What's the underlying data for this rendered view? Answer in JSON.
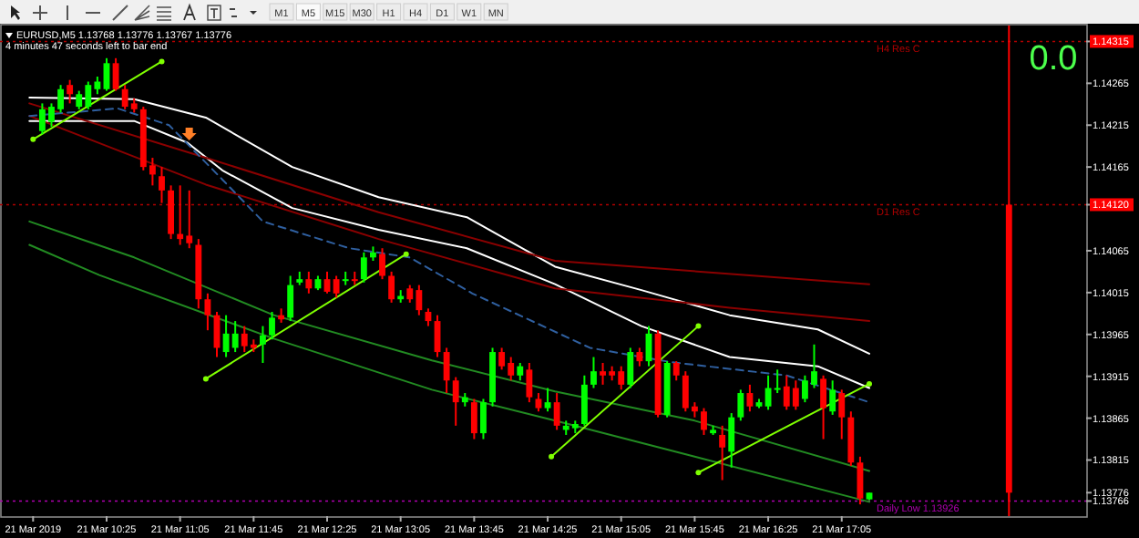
{
  "chart_data": {
    "type": "candlestick",
    "title": "EURUSD,M5  1.13768 1.13776 1.13767 1.13776",
    "subtitle": "4 minutes 47 seconds left to bar end",
    "annotations": [
      "M1",
      "M5",
      "M15",
      "M30",
      "H1",
      "H4",
      "D1",
      "W1",
      "MN",
      "0.0"
    ],
    "x": [
      "2019-03-21T09:50",
      "2019-03-21T09:55",
      "2019-03-21T10:00",
      "2019-03-21T10:05",
      "2019-03-21T10:10",
      "2019-03-21T10:15",
      "2019-03-21T10:20",
      "2019-03-21T10:25",
      "2019-03-21T10:30",
      "2019-03-21T10:35",
      "2019-03-21T10:40",
      "2019-03-21T10:45",
      "2019-03-21T10:50",
      "2019-03-21T10:55",
      "2019-03-21T11:00",
      "2019-03-21T11:05",
      "2019-03-21T11:10",
      "2019-03-21T11:15",
      "2019-03-21T11:20",
      "2019-03-21T11:25",
      "2019-03-21T11:30",
      "2019-03-21T11:35",
      "2019-03-21T11:40",
      "2019-03-21T11:45",
      "2019-03-21T11:50",
      "2019-03-21T11:55",
      "2019-03-21T12:00",
      "2019-03-21T12:05",
      "2019-03-21T12:10",
      "2019-03-21T12:15",
      "2019-03-21T12:20",
      "2019-03-21T12:25",
      "2019-03-21T12:30",
      "2019-03-21T12:35",
      "2019-03-21T12:40",
      "2019-03-21T12:45",
      "2019-03-21T12:50",
      "2019-03-21T12:55",
      "2019-03-21T13:00",
      "2019-03-21T13:05",
      "2019-03-21T13:10",
      "2019-03-21T13:15",
      "2019-03-21T13:20",
      "2019-03-21T13:25",
      "2019-03-21T13:30",
      "2019-03-21T13:35",
      "2019-03-21T13:40",
      "2019-03-21T13:45",
      "2019-03-21T13:50",
      "2019-03-21T13:55",
      "2019-03-21T14:00",
      "2019-03-21T14:05",
      "2019-03-21T14:10",
      "2019-03-21T14:15",
      "2019-03-21T14:20",
      "2019-03-21T14:25",
      "2019-03-21T14:30",
      "2019-03-21T14:35",
      "2019-03-21T14:40",
      "2019-03-21T14:45",
      "2019-03-21T14:50",
      "2019-03-21T14:55",
      "2019-03-21T15:00",
      "2019-03-21T15:05",
      "2019-03-21T15:10",
      "2019-03-21T15:15",
      "2019-03-21T15:20",
      "2019-03-21T15:25",
      "2019-03-21T15:30",
      "2019-03-21T15:35",
      "2019-03-21T15:40",
      "2019-03-21T15:45",
      "2019-03-21T15:50",
      "2019-03-21T15:55",
      "2019-03-21T16:00",
      "2019-03-21T16:05",
      "2019-03-21T16:10",
      "2019-03-21T16:15",
      "2019-03-21T16:20",
      "2019-03-21T16:25",
      "2019-03-21T16:30",
      "2019-03-21T16:35",
      "2019-03-21T16:40",
      "2019-03-21T16:45",
      "2019-03-21T16:50",
      "2019-03-21T16:55",
      "2019-03-21T17:00",
      "2019-03-21T17:05",
      "2019-03-21T17:10",
      "2019-03-21T17:15",
      "2019-03-21T17:20",
      "2019-03-21T18:36"
    ],
    "ohlc": [
      [
        1.14208,
        1.14241,
        1.14204,
        1.14234
      ],
      [
        1.14219,
        1.14241,
        1.14213,
        1.14237
      ],
      [
        1.14234,
        1.14263,
        1.1423,
        1.14258
      ],
      [
        1.14263,
        1.14269,
        1.14241,
        1.14252
      ],
      [
        1.14237,
        1.14256,
        1.14234,
        1.14252
      ],
      [
        1.14237,
        1.14267,
        1.14234,
        1.14263
      ],
      [
        1.14258,
        1.14273,
        1.14252,
        1.14267
      ],
      [
        1.14258,
        1.14295,
        1.14256,
        1.14289
      ],
      [
        1.14289,
        1.14295,
        1.14256,
        1.14258
      ],
      [
        1.14258,
        1.14263,
        1.14234,
        1.14237
      ],
      [
        1.14241,
        1.14247,
        1.1423,
        1.14234
      ],
      [
        1.14234,
        1.14237,
        1.14161,
        1.14165
      ],
      [
        1.14167,
        1.14176,
        1.14143,
        1.14156
      ],
      [
        1.14154,
        1.14165,
        1.14122,
        1.14137
      ],
      [
        1.14137,
        1.14143,
        1.14079,
        1.14085
      ],
      [
        1.14085,
        1.14143,
        1.14072,
        1.14079
      ],
      [
        1.14083,
        1.14137,
        1.14068,
        1.14074
      ],
      [
        1.14072,
        1.14079,
        1.13996,
        1.14007
      ],
      [
        1.14007,
        1.14014,
        1.1397,
        1.13988
      ],
      [
        1.13988,
        1.13992,
        1.13938,
        1.13949
      ],
      [
        1.13944,
        1.13988,
        1.13938,
        1.13966
      ],
      [
        1.13949,
        1.13981,
        1.13944,
        1.13966
      ],
      [
        1.13966,
        1.13975,
        1.13944,
        1.13951
      ],
      [
        1.13953,
        1.13959,
        1.13944,
        1.13949
      ],
      [
        1.13953,
        1.13975,
        1.13931,
        1.13964
      ],
      [
        1.13964,
        1.13992,
        1.13959,
        1.13985
      ],
      [
        1.13988,
        1.13996,
        1.13979,
        1.13983
      ],
      [
        1.13985,
        1.14035,
        1.13981,
        1.14024
      ],
      [
        1.14027,
        1.1404,
        1.14024,
        1.14031
      ],
      [
        1.14031,
        1.1404,
        1.14014,
        1.1402
      ],
      [
        1.1402,
        1.14035,
        1.14018,
        1.14031
      ],
      [
        1.14031,
        1.1404,
        1.14014,
        1.14016
      ],
      [
        1.14031,
        1.14035,
        1.14009,
        1.14014
      ],
      [
        1.14029,
        1.1404,
        1.14024,
        1.14031
      ],
      [
        1.14031,
        1.1404,
        1.14024,
        1.14029
      ],
      [
        1.14031,
        1.14063,
        1.14027,
        1.14057
      ],
      [
        1.14057,
        1.1407,
        1.14053,
        1.14063
      ],
      [
        1.14061,
        1.14068,
        1.14031,
        1.14035
      ],
      [
        1.14035,
        1.1404,
        1.14003,
        1.14007
      ],
      [
        1.14007,
        1.14018,
        1.14003,
        1.14011
      ],
      [
        1.1402,
        1.14024,
        1.14003,
        1.14007
      ],
      [
        1.14018,
        1.14024,
        1.13988,
        1.13994
      ],
      [
        1.13992,
        1.13996,
        1.13975,
        1.13981
      ],
      [
        1.13981,
        1.13988,
        1.13938,
        1.13944
      ],
      [
        1.13944,
        1.13949,
        1.13895,
        1.1391
      ],
      [
        1.1391,
        1.13914,
        1.13856,
        1.13884
      ],
      [
        1.13884,
        1.13895,
        1.13879,
        1.1389
      ],
      [
        1.13884,
        1.13888,
        1.1384,
        1.13847
      ],
      [
        1.13847,
        1.13888,
        1.1384,
        1.13884
      ],
      [
        1.13884,
        1.13949,
        1.13879,
        1.13944
      ],
      [
        1.13944,
        1.13949,
        1.13923,
        1.13927
      ],
      [
        1.13931,
        1.13938,
        1.1391,
        1.13916
      ],
      [
        1.13916,
        1.13931,
        1.1391,
        1.13927
      ],
      [
        1.13923,
        1.13931,
        1.13884,
        1.1389
      ],
      [
        1.13888,
        1.13895,
        1.13873,
        1.13877
      ],
      [
        1.13877,
        1.13901,
        1.13873,
        1.13884
      ],
      [
        1.13884,
        1.13895,
        1.13851,
        1.13856
      ],
      [
        1.13851,
        1.13862,
        1.13845,
        1.13856
      ],
      [
        1.13853,
        1.13862,
        1.13847,
        1.13858
      ],
      [
        1.13858,
        1.13916,
        1.13856,
        1.13905
      ],
      [
        1.13905,
        1.13938,
        1.13901,
        1.13921
      ],
      [
        1.13921,
        1.13931,
        1.13905,
        1.13916
      ],
      [
        1.13921,
        1.13927,
        1.1391,
        1.13916
      ],
      [
        1.13921,
        1.13927,
        1.13899,
        1.13905
      ],
      [
        1.13905,
        1.13949,
        1.13901,
        1.13944
      ],
      [
        1.13944,
        1.13949,
        1.13927,
        1.13933
      ],
      [
        1.13933,
        1.13975,
        1.13927,
        1.13966
      ],
      [
        1.13966,
        1.1397,
        1.13866,
        1.13869
      ],
      [
        1.13869,
        1.13933,
        1.13866,
        1.13931
      ],
      [
        1.13931,
        1.13933,
        1.1391,
        1.13916
      ],
      [
        1.13916,
        1.13921,
        1.13873,
        1.13877
      ],
      [
        1.13879,
        1.13884,
        1.13866,
        1.13873
      ],
      [
        1.13873,
        1.13877,
        1.13845,
        1.13851
      ],
      [
        1.13847,
        1.13856,
        1.13845,
        1.13851
      ],
      [
        1.13845,
        1.13856,
        1.13791,
        1.1383
      ],
      [
        1.13825,
        1.13871,
        1.13806,
        1.13866
      ],
      [
        1.13866,
        1.13899,
        1.13862,
        1.13895
      ],
      [
        1.13895,
        1.13905,
        1.13873,
        1.13879
      ],
      [
        1.13879,
        1.13888,
        1.13877,
        1.13884
      ],
      [
        1.13879,
        1.13916,
        1.13875,
        1.13901
      ],
      [
        1.13899,
        1.13923,
        1.13895,
        1.13901
      ],
      [
        1.13903,
        1.13916,
        1.13875,
        1.13879
      ],
      [
        1.13901,
        1.1391,
        1.13875,
        1.13879
      ],
      [
        1.13888,
        1.13916,
        1.13884,
        1.1391
      ],
      [
        1.13905,
        1.13953,
        1.13901,
        1.13921
      ],
      [
        1.13912,
        1.13916,
        1.1384,
        1.13877
      ],
      [
        1.13873,
        1.1391,
        1.13869,
        1.13899
      ],
      [
        1.13895,
        1.13899,
        1.1384,
        1.13866
      ],
      [
        1.13866,
        1.13873,
        1.13808,
        1.13812
      ],
      [
        1.13812,
        1.13819,
        1.13762,
        1.13769
      ],
      [
        1.13768,
        1.13776,
        1.13767,
        1.13776
      ],
      [
        1.1412,
        1.1412,
        1.13766,
        1.13776
      ]
    ],
    "series": [
      {
        "type": "line",
        "color": "#ffffff",
        "line_style": "solid",
        "x": [
          "2019-03-21T09:43",
          "2019-03-21T10:40",
          "2019-03-21T11:19",
          "2019-03-21T12:06",
          "2019-03-21T12:53",
          "2019-03-21T13:41",
          "2019-03-21T14:29",
          "2019-03-21T15:16",
          "2019-03-21T16:04",
          "2019-03-21T16:52",
          "2019-03-21T17:20"
        ],
        "values": [
          1.14248,
          1.14246,
          1.14224,
          1.14165,
          1.14129,
          1.14105,
          1.14046,
          1.14018,
          1.13988,
          1.13971,
          1.13942
        ]
      },
      {
        "type": "line",
        "color": "#ffffff",
        "line_style": "solid",
        "x": [
          "2019-03-21T09:43",
          "2019-03-21T10:40",
          "2019-03-21T11:09",
          "2019-03-21T11:28",
          "2019-03-21T12:06",
          "2019-03-21T12:53",
          "2019-03-21T13:41",
          "2019-03-21T14:29",
          "2019-03-21T15:16",
          "2019-03-21T16:04",
          "2019-03-21T16:52",
          "2019-03-21T17:20"
        ],
        "values": [
          1.1422,
          1.1422,
          1.14194,
          1.14161,
          1.14116,
          1.1409,
          1.14068,
          1.14025,
          1.13975,
          1.13938,
          1.13927,
          1.13901
        ]
      },
      {
        "type": "line",
        "color": "#8b0000",
        "line_style": "solid",
        "x": [
          "2019-03-21T09:43",
          "2019-03-21T11:19",
          "2019-03-21T12:53",
          "2019-03-21T14:29",
          "2019-03-21T17:20"
        ],
        "values": [
          1.14241,
          1.14176,
          1.14111,
          1.14053,
          1.14025
        ]
      },
      {
        "type": "line",
        "color": "#8b0000",
        "line_style": "solid",
        "x": [
          "2019-03-21T09:43",
          "2019-03-21T11:19",
          "2019-03-21T12:53",
          "2019-03-21T14:29",
          "2019-03-21T16:04",
          "2019-03-21T17:20"
        ],
        "values": [
          1.14226,
          1.14144,
          1.14079,
          1.1402,
          1.13997,
          1.13981
        ]
      },
      {
        "type": "line",
        "color": "#2f5f9f",
        "line_style": "dashed",
        "x": [
          "2019-03-21T09:43",
          "2019-03-21T10:31",
          "2019-03-21T10:59",
          "2019-03-21T11:28",
          "2019-03-21T11:50",
          "2019-03-21T12:37",
          "2019-03-21T13:10",
          "2019-03-21T13:44",
          "2019-03-21T14:48",
          "2019-03-21T15:32",
          "2019-03-21T16:35",
          "2019-03-21T17:20"
        ],
        "values": [
          1.14226,
          1.14235,
          1.14215,
          1.1415,
          1.141,
          1.14068,
          1.14057,
          1.14014,
          1.13949,
          1.13932,
          1.13916,
          1.13884
        ]
      },
      {
        "type": "line",
        "color": "#228b22",
        "line_style": "solid",
        "x": [
          "2019-03-21T09:43",
          "2019-03-21T10:40",
          "2019-03-21T11:56",
          "2019-03-21T13:22",
          "2019-03-21T14:29",
          "2019-03-21T15:45",
          "2019-03-21T17:20"
        ],
        "values": [
          1.141,
          1.14057,
          1.13988,
          1.13934,
          1.13897,
          1.13862,
          1.13802
        ]
      },
      {
        "type": "line",
        "color": "#228b22",
        "line_style": "solid",
        "x": [
          "2019-03-21T09:43",
          "2019-03-21T10:21",
          "2019-03-21T11:56",
          "2019-03-21T13:22",
          "2019-03-21T14:29",
          "2019-03-21T15:45",
          "2019-03-21T17:20"
        ],
        "values": [
          1.14072,
          1.14036,
          1.1396,
          1.13899,
          1.13862,
          1.13819,
          1.13765
        ]
      },
      {
        "type": "line",
        "color": "#7fff00",
        "line_style": "solid",
        "marker": "circle",
        "x": [
          "2019-03-21T09:45",
          "2019-03-21T10:55"
        ],
        "values": [
          1.14198,
          1.14291
        ]
      },
      {
        "type": "line",
        "color": "#7fff00",
        "line_style": "solid",
        "marker": "circle",
        "x": [
          "2019-03-21T11:19",
          "2019-03-21T13:08"
        ],
        "values": [
          1.13912,
          1.14061
        ]
      },
      {
        "type": "line",
        "color": "#7fff00",
        "line_style": "solid",
        "marker": "circle",
        "x": [
          "2019-03-21T14:27",
          "2019-03-21T15:47"
        ],
        "values": [
          1.13819,
          1.13975
        ]
      },
      {
        "type": "line",
        "color": "#7fff00",
        "line_style": "solid",
        "marker": "circle",
        "x": [
          "2019-03-21T15:47",
          "2019-03-21T17:20"
        ],
        "values": [
          1.138,
          1.13906
        ]
      }
    ],
    "ref_lines": [
      {
        "axis": "y",
        "value": 1.14315,
        "label": "H4 Res C",
        "color": "#b00000",
        "line_style": "dotted"
      },
      {
        "axis": "y",
        "value": 1.1412,
        "label": "D1 Res C",
        "color": "#b00000",
        "line_style": "dotted"
      },
      {
        "axis": "y",
        "value": 1.13766,
        "label": "Daily Low 1.13926",
        "color": "#b000b0",
        "line_style": "dotted"
      },
      {
        "axis": "x",
        "value": "2019-03-21T18:36",
        "label": null,
        "color": "#ff0000",
        "line_style": "solid"
      }
    ],
    "xlim": [
      "2019-03-21T09:27",
      "2019-03-21T19:18"
    ],
    "ylim": [
      1.13748,
      1.14334
    ],
    "xticks": [
      {
        "value": "2019-03-21T09:45",
        "label": "21 Mar 2019"
      },
      {
        "value": "2019-03-21T10:25",
        "label": "21 Mar 10:25"
      },
      {
        "value": "2019-03-21T11:05",
        "label": "21 Mar 11:05"
      },
      {
        "value": "2019-03-21T11:45",
        "label": "21 Mar 11:45"
      },
      {
        "value": "2019-03-21T12:25",
        "label": "21 Mar 12:25"
      },
      {
        "value": "2019-03-21T13:05",
        "label": "21 Mar 13:05"
      },
      {
        "value": "2019-03-21T13:45",
        "label": "21 Mar 13:45"
      },
      {
        "value": "2019-03-21T14:25",
        "label": "21 Mar 14:25"
      },
      {
        "value": "2019-03-21T15:05",
        "label": "21 Mar 15:05"
      },
      {
        "value": "2019-03-21T15:45",
        "label": "21 Mar 15:45"
      },
      {
        "value": "2019-03-21T16:25",
        "label": "21 Mar 16:25"
      },
      {
        "value": "2019-03-21T17:05",
        "label": "21 Mar 17:05"
      }
    ],
    "yticks": [
      1.14315,
      1.14265,
      1.14215,
      1.14165,
      {
        "value": 1.1412,
        "label": "1.14120"
      },
      1.14065,
      1.14015,
      1.13965,
      1.13915,
      1.13865,
      1.13815,
      1.13776,
      1.13766
    ],
    "grid": false
  }
}
